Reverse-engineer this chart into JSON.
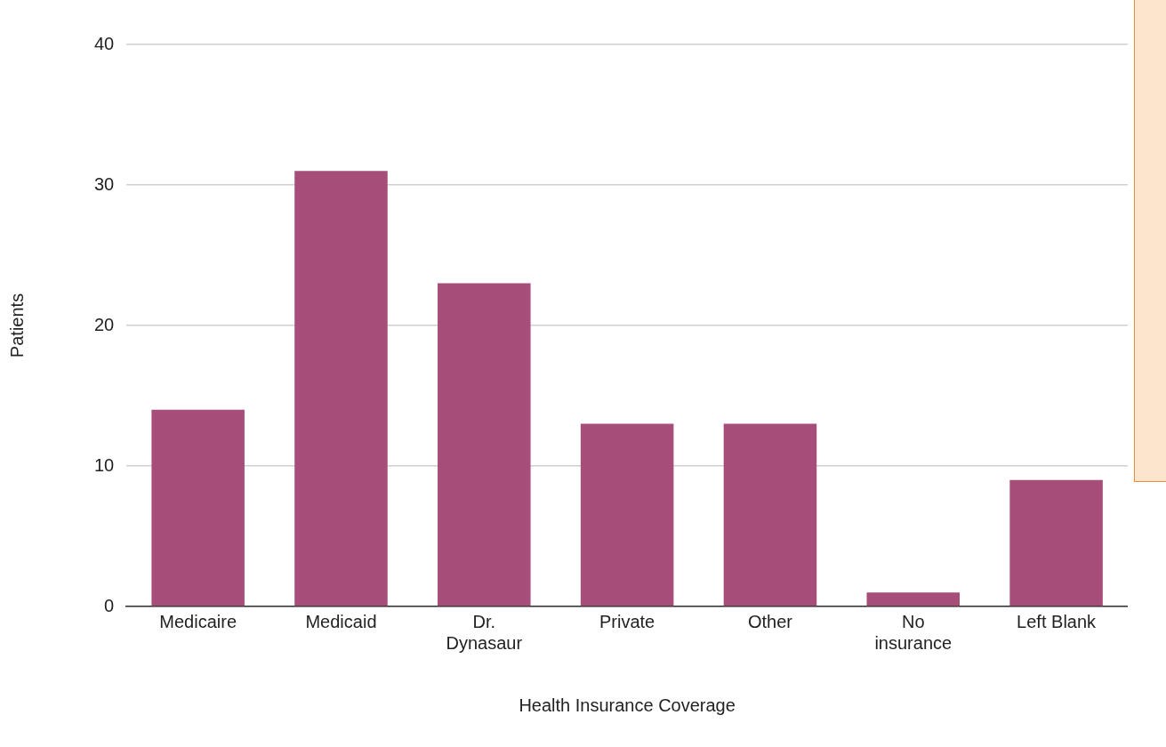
{
  "chart_data": {
    "type": "bar",
    "xlabel": "Health Insurance Coverage",
    "ylabel": "Patients",
    "categories": [
      "Medicaire",
      "Medicaid",
      "Dr. Dynasaur",
      "Private",
      "Other",
      "No insurance",
      "Left Blank"
    ],
    "values": [
      14,
      31,
      23,
      13,
      13,
      1,
      9
    ],
    "color": "#a64d79",
    "ylim": [
      0,
      40
    ],
    "yticks": [
      0,
      10,
      20,
      30,
      40
    ],
    "grid": "y",
    "legend": false
  }
}
